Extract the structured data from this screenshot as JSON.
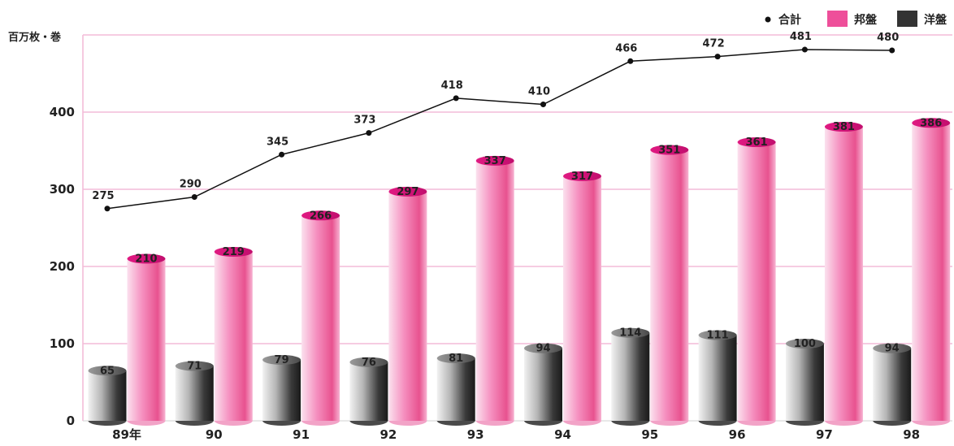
{
  "chart_data": {
    "type": "bar",
    "ylabel": "百万枚・巻",
    "ylim": [
      0,
      500
    ],
    "yticks": [
      0,
      100,
      200,
      300,
      400
    ],
    "grid": true,
    "legend_position": "top-right",
    "categories": [
      "89年",
      "90",
      "91",
      "92",
      "93",
      "94",
      "95",
      "96",
      "97",
      "98"
    ],
    "series": [
      {
        "name": "洋盤",
        "kind": "bar",
        "color": "#333333",
        "values": [
          65,
          71,
          79,
          76,
          81,
          94,
          114,
          111,
          100,
          94
        ]
      },
      {
        "name": "邦盤",
        "kind": "bar",
        "color": "#ee4f9a",
        "values": [
          210,
          219,
          266,
          297,
          337,
          317,
          351,
          361,
          381,
          386
        ]
      },
      {
        "name": "合計",
        "kind": "line",
        "color": "#222222",
        "values": [
          275,
          290,
          345,
          373,
          418,
          410,
          466,
          472,
          481,
          480
        ]
      }
    ],
    "legend_order": [
      "合計",
      "邦盤",
      "洋盤"
    ],
    "colors": {
      "grid": "#f4bcd8",
      "axis": "#d9d9d9",
      "text": "#222222"
    }
  }
}
